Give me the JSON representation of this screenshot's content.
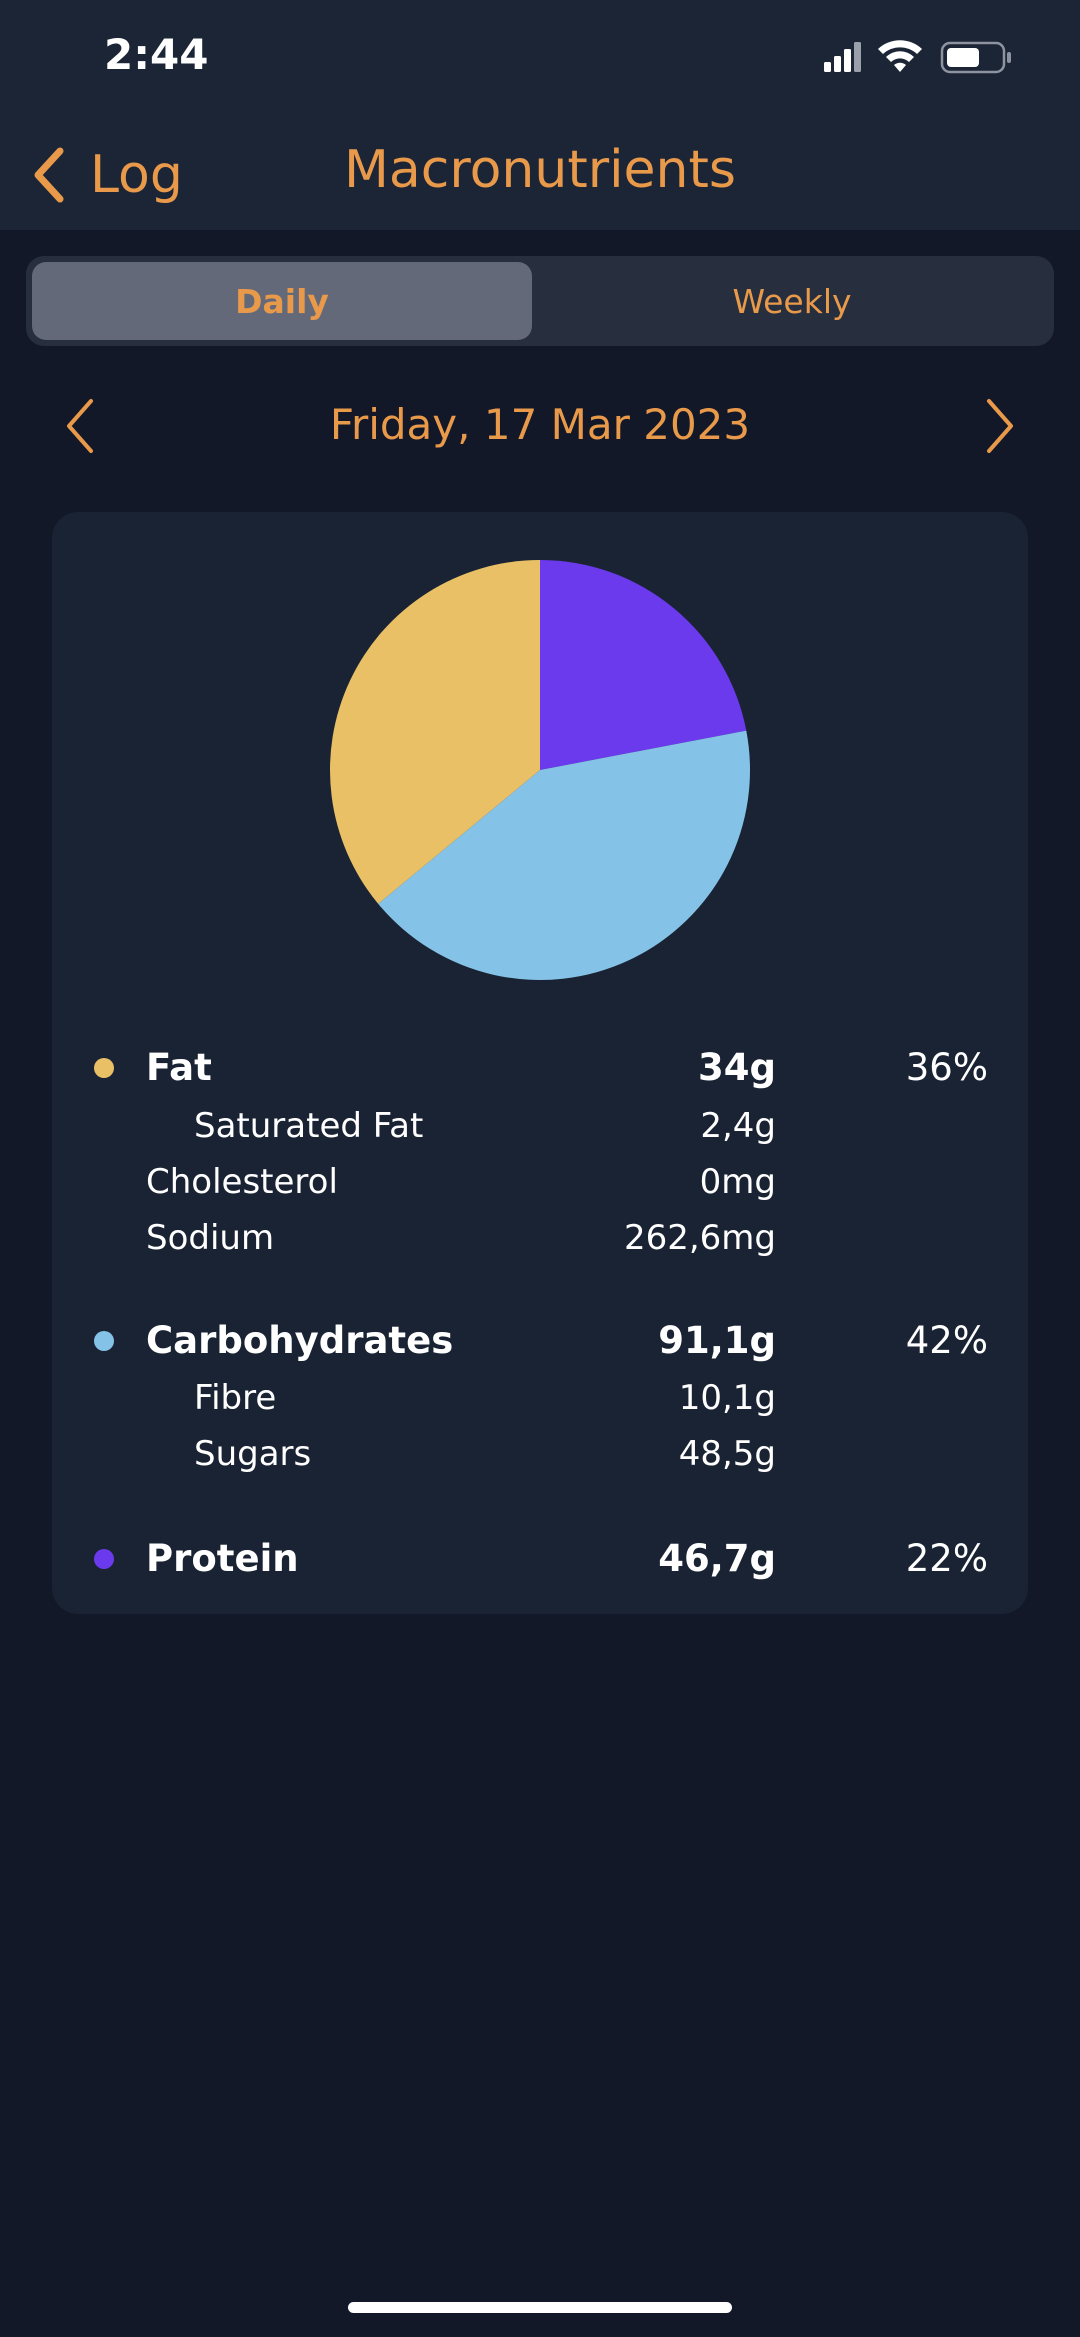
{
  "status_bar": {
    "time": "2:44"
  },
  "nav": {
    "back_label": "Log",
    "title": "Macronutrients"
  },
  "segmented": {
    "daily": "Daily",
    "weekly": "Weekly",
    "selected": "Daily"
  },
  "date_nav": {
    "label": "Friday, 17 Mar 2023"
  },
  "colors": {
    "accent": "#e8994a",
    "fat": "#e9c066",
    "carbohydrates": "#84c3e7",
    "protein": "#6b3aec"
  },
  "nutrients": {
    "fat": {
      "name": "Fat",
      "amount": "34g",
      "percent": "36%"
    },
    "saturated_fat": {
      "name": "Saturated Fat",
      "amount": "2,4g"
    },
    "cholesterol": {
      "name": "Cholesterol",
      "amount": "0mg"
    },
    "sodium": {
      "name": "Sodium",
      "amount": "262,6mg"
    },
    "carbohydrates": {
      "name": "Carbohydrates",
      "amount": "91,1g",
      "percent": "42%"
    },
    "fibre": {
      "name": "Fibre",
      "amount": "10,1g"
    },
    "sugars": {
      "name": "Sugars",
      "amount": "48,5g"
    },
    "protein": {
      "name": "Protein",
      "amount": "46,7g",
      "percent": "22%"
    }
  },
  "chart_data": {
    "type": "pie",
    "categories": [
      "Protein",
      "Carbohydrates",
      "Fat"
    ],
    "values": [
      22,
      42,
      36
    ],
    "colors": [
      "#6b3aec",
      "#84c3e7",
      "#e9c066"
    ]
  }
}
